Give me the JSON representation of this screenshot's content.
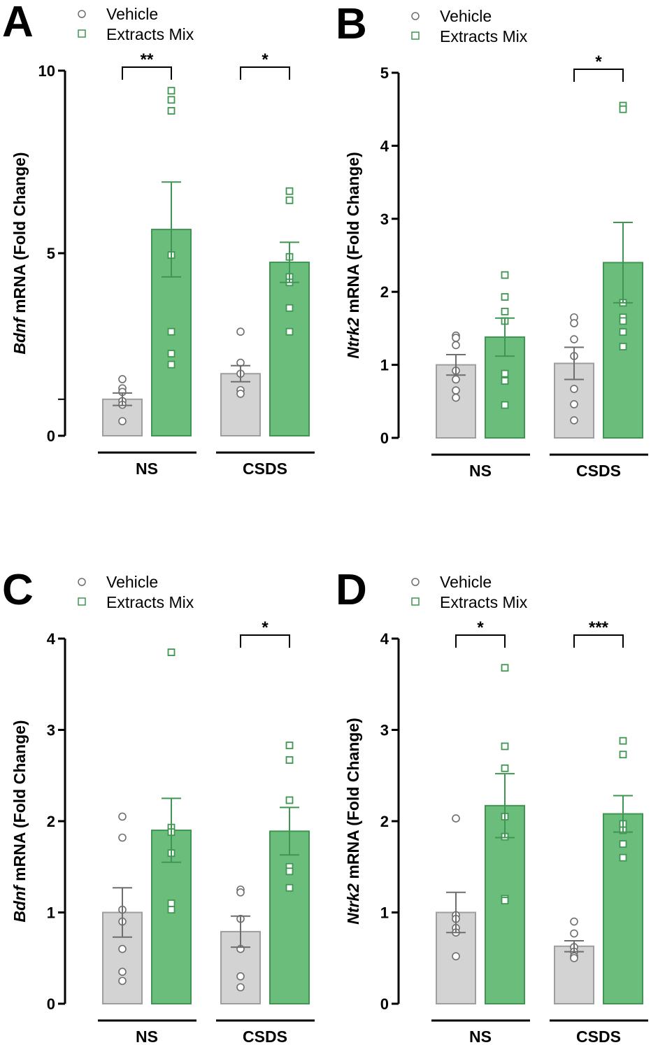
{
  "chart_data": [
    {
      "type": "bar",
      "panel": "A",
      "ylabel_gene": "Bdnf",
      "ylabel_rest": " mRNA (Fold Change)",
      "ylim": [
        0,
        10
      ],
      "yticks": [
        0,
        5,
        10
      ],
      "minor_ticks": [
        1
      ],
      "categories": [
        "NS",
        "CSDS"
      ],
      "legend": [
        "Vehicle",
        "Extracts Mix"
      ],
      "series": [
        {
          "name": "Vehicle",
          "means": [
            1.0,
            1.7
          ],
          "sem": [
            0.17,
            0.22
          ],
          "points": [
            [
              1.55,
              1.3,
              1.2,
              0.95,
              0.85,
              0.4
            ],
            [
              2.85,
              2.0,
              1.7,
              1.25,
              1.15
            ]
          ]
        },
        {
          "name": "Extracts Mix",
          "means": [
            5.65,
            4.75
          ],
          "sem": [
            1.3,
            0.55
          ],
          "points": [
            [
              9.45,
              9.2,
              8.9,
              4.95,
              2.85,
              2.25,
              1.95
            ],
            [
              6.7,
              6.45,
              4.9,
              4.35,
              4.2,
              3.5,
              2.85
            ]
          ]
        }
      ],
      "significance": [
        "**",
        "*"
      ]
    },
    {
      "type": "bar",
      "panel": "B",
      "ylabel_gene": "Ntrk2",
      "ylabel_rest": " mRNA (Fold Change)",
      "ylim": [
        0,
        5
      ],
      "yticks": [
        0,
        1,
        2,
        3,
        4,
        5
      ],
      "minor_ticks": [],
      "categories": [
        "NS",
        "CSDS"
      ],
      "legend": [
        "Vehicle",
        "Extracts Mix"
      ],
      "series": [
        {
          "name": "Vehicle",
          "means": [
            1.0,
            1.02
          ],
          "sem": [
            0.14,
            0.22
          ],
          "points": [
            [
              1.4,
              1.37,
              1.27,
              0.92,
              0.8,
              0.65,
              0.55
            ],
            [
              1.65,
              1.57,
              1.35,
              1.12,
              0.67,
              0.46,
              0.24
            ]
          ]
        },
        {
          "name": "Extracts Mix",
          "means": [
            1.38,
            2.4
          ],
          "sem": [
            0.26,
            0.55
          ],
          "points": [
            [
              2.23,
              1.93,
              1.73,
              1.6,
              0.88,
              0.78,
              0.45
            ],
            [
              4.55,
              4.5,
              1.85,
              1.65,
              1.6,
              1.45,
              1.25
            ]
          ]
        }
      ],
      "significance": [
        "",
        "*"
      ]
    },
    {
      "type": "bar",
      "panel": "C",
      "ylabel_gene": "Bdnf",
      "ylabel_rest": " mRNA (Fold Change)",
      "ylim": [
        0,
        4
      ],
      "yticks": [
        0,
        1,
        2,
        3,
        4
      ],
      "minor_ticks": [],
      "categories": [
        "NS",
        "CSDS"
      ],
      "legend": [
        "Vehicle",
        "Extracts Mix"
      ],
      "series": [
        {
          "name": "Vehicle",
          "means": [
            1.0,
            0.79
          ],
          "sem": [
            0.27,
            0.17
          ],
          "points": [
            [
              2.05,
              1.82,
              1.03,
              0.9,
              0.6,
              0.35,
              0.25
            ],
            [
              1.25,
              1.22,
              0.93,
              0.6,
              0.3,
              0.18
            ]
          ]
        },
        {
          "name": "Extracts Mix",
          "means": [
            1.9,
            1.89
          ],
          "sem": [
            0.35,
            0.26
          ],
          "points": [
            [
              3.85,
              1.93,
              1.88,
              1.65,
              1.1,
              1.03
            ],
            [
              2.83,
              2.67,
              2.23,
              1.5,
              1.45,
              1.27
            ]
          ]
        }
      ],
      "significance": [
        "",
        "*"
      ]
    },
    {
      "type": "bar",
      "panel": "D",
      "ylabel_gene": "Ntrk2",
      "ylabel_rest": " mRNA (Fold Change)",
      "ylim": [
        0,
        4
      ],
      "yticks": [
        0,
        1,
        2,
        3,
        4
      ],
      "minor_ticks": [],
      "categories": [
        "NS",
        "CSDS"
      ],
      "legend": [
        "Vehicle",
        "Extracts Mix"
      ],
      "series": [
        {
          "name": "Vehicle",
          "means": [
            1.0,
            0.63
          ],
          "sem": [
            0.22,
            0.06
          ],
          "points": [
            [
              2.03,
              0.97,
              0.93,
              0.83,
              0.78,
              0.52
            ],
            [
              0.9,
              0.77,
              0.62,
              0.57,
              0.52,
              0.5
            ]
          ]
        },
        {
          "name": "Extracts Mix",
          "means": [
            2.17,
            2.08
          ],
          "sem": [
            0.35,
            0.2
          ],
          "points": [
            [
              3.68,
              2.82,
              2.58,
              2.05,
              1.83,
              1.15,
              1.13
            ],
            [
              2.88,
              2.73,
              1.97,
              1.9,
              1.75,
              1.6
            ]
          ]
        }
      ],
      "significance": [
        "*",
        "***"
      ]
    }
  ],
  "colors": {
    "vehicle_fill": "#d3d3d3",
    "vehicle_stroke": "#9e9e9e",
    "vehicle_point": "#6e6e6e",
    "extract_fill": "#6abd7b",
    "extract_stroke": "#3f9652",
    "extract_point": "#3f9652"
  }
}
